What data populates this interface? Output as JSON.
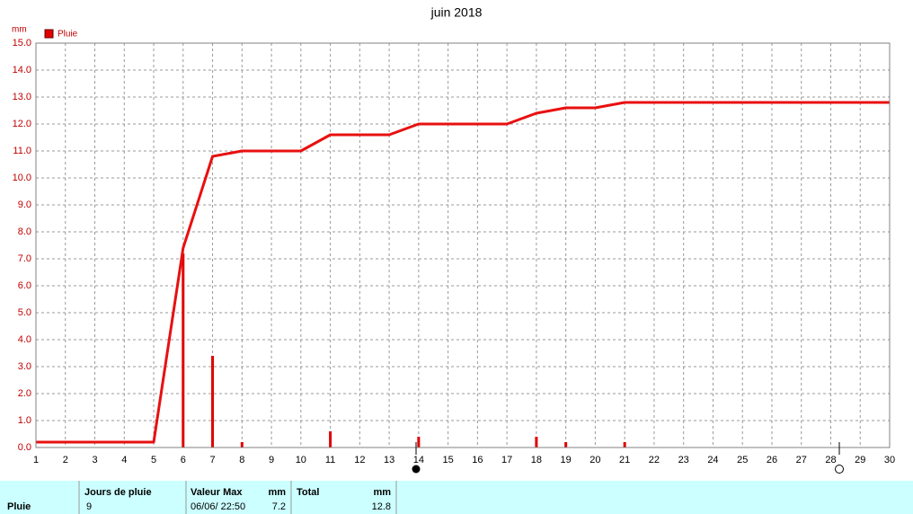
{
  "chart_data": {
    "type": "bar",
    "title": "juin 2018",
    "y_unit": "mm",
    "legend": "top-left",
    "series": [
      {
        "name": "Pluie",
        "type": "bar",
        "color": "#e00000",
        "x": [
          6,
          7,
          8,
          11,
          14,
          18,
          19,
          21
        ],
        "values": [
          7.2,
          3.4,
          0.2,
          0.6,
          0.4,
          0.4,
          0.2,
          0.2
        ]
      },
      {
        "type": "line",
        "color": "#e81010",
        "x": [
          1,
          5,
          6,
          7,
          8,
          10,
          11,
          13,
          14,
          17,
          18,
          19,
          20,
          21,
          30
        ],
        "values": [
          0.2,
          0.2,
          7.4,
          10.8,
          11,
          11,
          11.6,
          11.6,
          12,
          12,
          12.4,
          12.6,
          12.6,
          12.8,
          12.8
        ]
      }
    ],
    "xlim": [
      1,
      30
    ],
    "xticks": [
      1,
      2,
      3,
      4,
      5,
      6,
      7,
      8,
      9,
      10,
      11,
      12,
      13,
      14,
      15,
      16,
      17,
      18,
      19,
      20,
      21,
      22,
      23,
      24,
      25,
      26,
      27,
      28,
      29,
      30
    ],
    "ylim": [
      0,
      15
    ],
    "yticks": [
      {
        "value": 0,
        "label": "0.0"
      },
      {
        "value": 1,
        "label": "1.0"
      },
      {
        "value": 2,
        "label": "2.0"
      },
      {
        "value": 3,
        "label": "3.0"
      },
      {
        "value": 4,
        "label": "4.0"
      },
      {
        "value": 5,
        "label": "5.0"
      },
      {
        "value": 6,
        "label": "6.0"
      },
      {
        "value": 7,
        "label": "7.0"
      },
      {
        "value": 8,
        "label": "8.0"
      },
      {
        "value": 9,
        "label": "9.0"
      },
      {
        "value": 10,
        "label": "10.0"
      },
      {
        "value": 11,
        "label": "11.0"
      },
      {
        "value": 12,
        "label": "12.0"
      },
      {
        "value": 13,
        "label": "13.0"
      },
      {
        "value": 14,
        "label": "14.0"
      },
      {
        "value": 15,
        "label": "15.0"
      }
    ],
    "grid": true
  },
  "table": {
    "row_label": "Pluie",
    "columns": [
      {
        "title": "Jours de pluie",
        "value": 9
      },
      {
        "title": "Valeur Max",
        "unit": "mm",
        "date": "06/06/ 22:50",
        "value": 7.2
      },
      {
        "title": "Total",
        "unit": "mm",
        "value": 12.8
      }
    ]
  }
}
